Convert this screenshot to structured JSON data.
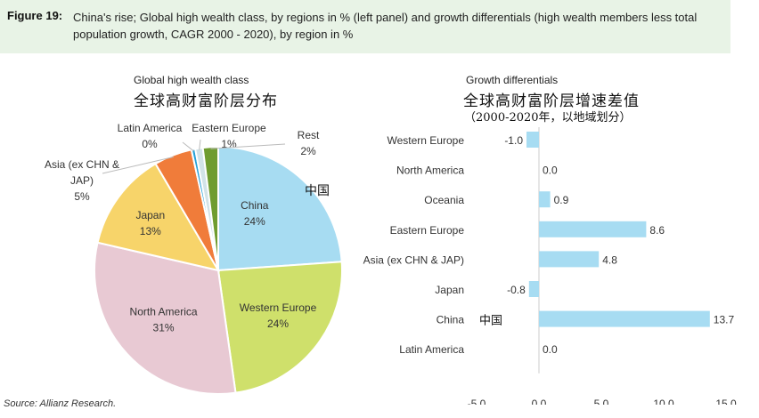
{
  "figure": {
    "label": "Figure 19:",
    "caption": "China's rise; Global high wealth class, by regions in % (left panel) and growth differentials (high wealth members less total population growth, CAGR 2000 - 2020), by region in %",
    "source": "Source: Allianz Research."
  },
  "left_panel": {
    "title": "Global high wealth class",
    "title_cn": "全球高财富阶层分布",
    "china_cn": "中国"
  },
  "right_panel": {
    "title": "Growth differentials",
    "title_cn": "全球高财富阶层增速差值",
    "subtitle_cn": "（2000-2020年，以地域划分）",
    "china_cn": "中国"
  },
  "chart_data": [
    {
      "type": "pie",
      "title": "Global high wealth class",
      "slices": [
        {
          "label": "China",
          "value": 24,
          "value_label": "24%",
          "color": "#a7dcf2"
        },
        {
          "label": "Western Europe",
          "value": 24,
          "value_label": "24%",
          "color": "#cfe06b"
        },
        {
          "label": "North America",
          "value": 31,
          "value_label": "31%",
          "color": "#e8c9d3"
        },
        {
          "label": "Japan",
          "value": 13,
          "value_label": "13%",
          "color": "#f7d46a"
        },
        {
          "label": "Asia (ex CHN & JAP)",
          "value": 5,
          "value_label": "5%",
          "color": "#f07c3a"
        },
        {
          "label": "Latin America",
          "value": 0.5,
          "value_label": "0%",
          "color": "#27a2d8"
        },
        {
          "label": "Eastern Europe",
          "value": 1,
          "value_label": "1%",
          "color": "#d2e3e8"
        },
        {
          "label": "Rest",
          "value": 2,
          "value_label": "2%",
          "color": "#6f9c2f"
        }
      ]
    },
    {
      "type": "bar",
      "orientation": "horizontal",
      "title": "Growth differentials",
      "categories": [
        "Western Europe",
        "North America",
        "Oceania",
        "Eastern Europe",
        "Asia (ex CHN & JAP)",
        "Japan",
        "China",
        "Latin America"
      ],
      "values": [
        -1.0,
        0.0,
        0.9,
        8.6,
        4.8,
        -0.8,
        13.7,
        0.0
      ],
      "value_labels": [
        "-1.0",
        "0.0",
        "0.9",
        "8.6",
        "4.8",
        "-0.8",
        "13.7",
        "0.0"
      ],
      "xlim": [
        -5,
        15
      ],
      "xticks": [
        "-5.0",
        "0.0",
        "5.0",
        "10.0",
        "15.0"
      ],
      "xtick_values": [
        -5,
        0,
        5,
        10,
        15
      ],
      "bar_color": "#a7dcf2",
      "grid": false
    }
  ]
}
